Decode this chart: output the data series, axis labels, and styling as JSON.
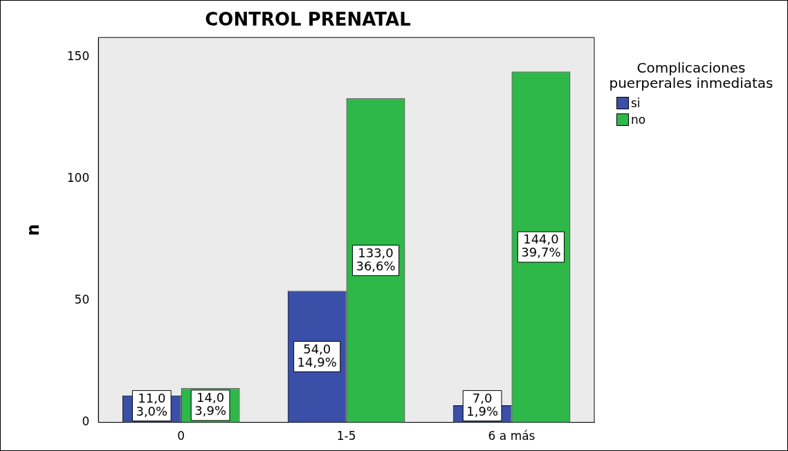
{
  "chart_data": {
    "type": "bar",
    "title": "CONTROL PRENATAL",
    "ylabel": "n",
    "legend_title": "Complicaciones puerperales inmediatas",
    "categories": [
      "0",
      "1-5",
      "6 a más"
    ],
    "series": [
      {
        "name": "si",
        "color": "#3a4fa8",
        "values": [
          11,
          54,
          7
        ],
        "value_labels": [
          "11,0\n3,0%",
          "54,0\n14,9%",
          "7,0\n1,9%"
        ]
      },
      {
        "name": "no",
        "color": "#2fb84a",
        "values": [
          14,
          133,
          144
        ],
        "value_labels": [
          "14,0\n3,9%",
          "133,0\n36,6%",
          "144,0\n39,7%"
        ]
      }
    ],
    "ylim": [
      0,
      158
    ],
    "yticks": [
      0,
      50,
      100,
      150
    ],
    "grid": false,
    "legend": "right"
  }
}
